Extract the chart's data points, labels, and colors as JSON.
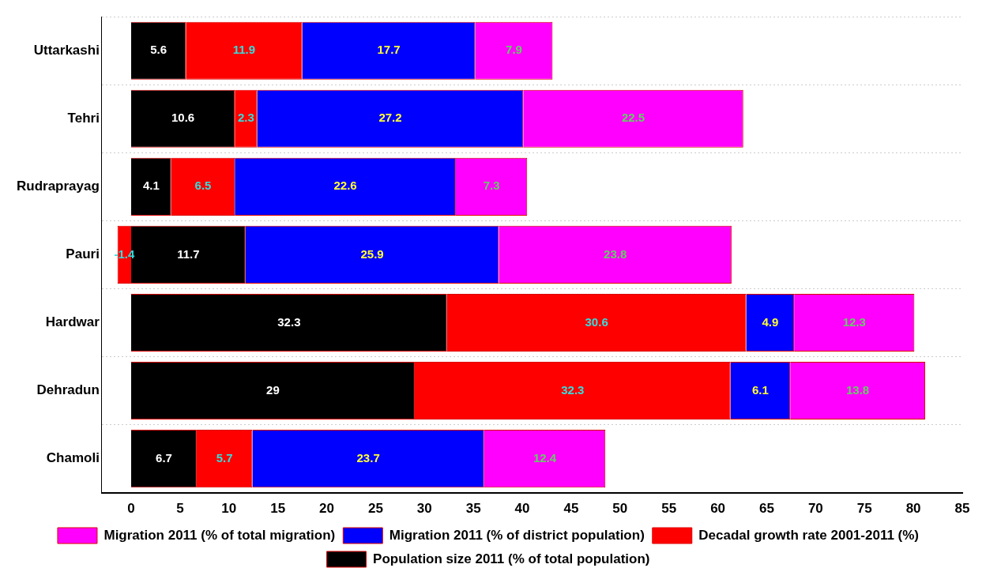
{
  "chart_data": {
    "type": "bar",
    "orientation": "horizontal",
    "stacked": true,
    "data_labels": true,
    "legend": "bottom",
    "grid": "y",
    "categories": [
      "Uttarkashi",
      "Tehri",
      "Rudraprayag",
      "Pauri",
      "Hardwar",
      "Dehradun",
      "Chamoli"
    ],
    "xlim": [
      -3,
      85
    ],
    "xticks": [
      0,
      5,
      10,
      15,
      20,
      25,
      30,
      35,
      40,
      45,
      50,
      55,
      60,
      65,
      70,
      75,
      80,
      85
    ],
    "series": [
      {
        "name": "Population size 2011 (% of total population)",
        "color": "#000000",
        "values": [
          5.6,
          10.6,
          4.1,
          11.7,
          32.3,
          29,
          6.7
        ]
      },
      {
        "name": "Decadal growth rate 2001-2011 (%)",
        "color": "#ff0000",
        "values": [
          11.9,
          2.3,
          6.5,
          -1.4,
          30.6,
          32.3,
          5.7
        ]
      },
      {
        "name": "Migration 2011 (% of district population)",
        "color": "#0000ff",
        "values": [
          17.7,
          27.2,
          22.6,
          25.9,
          4.9,
          6.1,
          23.7
        ]
      },
      {
        "name": "Migration 2011 (% of total migration)",
        "color": "#ff00ff",
        "values": [
          7.9,
          22.5,
          7.3,
          23.8,
          12.3,
          13.8,
          12.4
        ]
      }
    ]
  }
}
